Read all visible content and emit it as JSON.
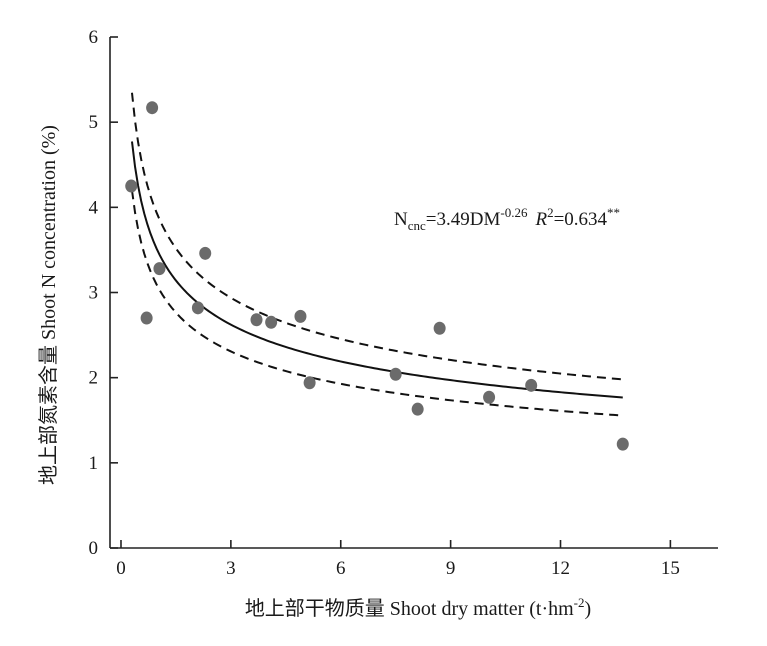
{
  "chart_data": {
    "type": "scatter",
    "xlabel": "地上部干物质量 Shoot dry matter (t·hm",
    "xlabel_sup": "-2",
    "xlabel_end": ")",
    "ylabel": "地上部氮素含量 Shoot N concentration (%)",
    "xlim": [
      -0.3,
      16.3
    ],
    "ylim": [
      0,
      6
    ],
    "xticks": [
      0,
      3,
      6,
      9,
      12,
      15
    ],
    "yticks": [
      0,
      1,
      2,
      3,
      4,
      5,
      6
    ],
    "grid": false,
    "points": [
      {
        "x": 0.28,
        "y": 4.25
      },
      {
        "x": 0.7,
        "y": 2.7
      },
      {
        "x": 0.85,
        "y": 5.17
      },
      {
        "x": 1.05,
        "y": 3.28
      },
      {
        "x": 2.1,
        "y": 2.82
      },
      {
        "x": 2.3,
        "y": 3.46
      },
      {
        "x": 3.7,
        "y": 2.68
      },
      {
        "x": 4.1,
        "y": 2.65
      },
      {
        "x": 4.9,
        "y": 2.72
      },
      {
        "x": 5.15,
        "y": 1.94
      },
      {
        "x": 7.5,
        "y": 2.04
      },
      {
        "x": 8.1,
        "y": 1.63
      },
      {
        "x": 8.7,
        "y": 2.58
      },
      {
        "x": 10.05,
        "y": 1.77
      },
      {
        "x": 11.2,
        "y": 1.91
      },
      {
        "x": 13.7,
        "y": 1.22
      }
    ],
    "fit": {
      "a": 3.49,
      "b": -0.26,
      "x_range": [
        0.3,
        13.7
      ]
    },
    "upper_band_factor": 1.12,
    "lower_band_factor": 0.88,
    "annotation": {
      "n_main": "N",
      "n_sub": "cnc",
      "eq_mid": "=3.49DM",
      "eq_exp": "-0.26",
      "r_label": "R",
      "r_sup": "2",
      "r_value": "=0.634",
      "r_stars": "**"
    }
  }
}
